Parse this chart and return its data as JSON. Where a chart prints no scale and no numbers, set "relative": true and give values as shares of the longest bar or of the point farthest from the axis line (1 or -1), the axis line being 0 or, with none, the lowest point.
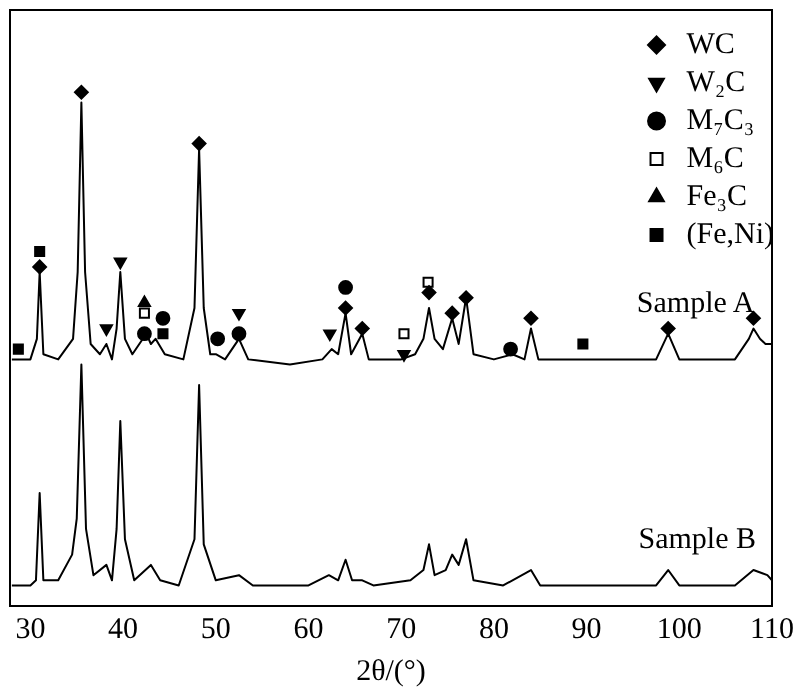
{
  "chart_data": {
    "type": "line",
    "relative": true,
    "xlabel": "2θ/(°)",
    "xlim": [
      27.8,
      110
    ],
    "xticks": [
      30,
      40,
      50,
      60,
      70,
      80,
      90,
      100,
      110
    ],
    "grid": false,
    "legend": "top right",
    "marker": "none",
    "line_style": "solid",
    "series": [
      {
        "name": "Sample A",
        "color": "#000000",
        "x": [
          28,
          30,
          30.7,
          31.0,
          31.4,
          33,
          34.6,
          35.1,
          35.5,
          35.9,
          36.5,
          37.5,
          38.2,
          38.8,
          39.3,
          39.7,
          40.2,
          41,
          42.5,
          43,
          43.5,
          44.5,
          46.5,
          47.7,
          48.2,
          48.7,
          49.4,
          50,
          51,
          52.5,
          53.5,
          58,
          61.5,
          62.5,
          63.2,
          64.0,
          64.6,
          65.8,
          66.5,
          70,
          71.5,
          72.4,
          73.0,
          73.6,
          74.5,
          75.5,
          76.2,
          77.0,
          77.8,
          80,
          82,
          83.3,
          84.0,
          84.8,
          89,
          97.5,
          98.8,
          100,
          106,
          107.5,
          108,
          108.7,
          109.3,
          110
        ],
        "values": [
          0.48,
          0.48,
          0.52,
          0.65,
          0.49,
          0.48,
          0.52,
          0.65,
          0.98,
          0.65,
          0.51,
          0.49,
          0.51,
          0.48,
          0.54,
          0.65,
          0.52,
          0.49,
          0.53,
          0.51,
          0.52,
          0.49,
          0.48,
          0.58,
          0.89,
          0.58,
          0.49,
          0.49,
          0.48,
          0.52,
          0.48,
          0.47,
          0.48,
          0.5,
          0.49,
          0.57,
          0.49,
          0.53,
          0.48,
          0.48,
          0.49,
          0.52,
          0.58,
          0.52,
          0.5,
          0.56,
          0.51,
          0.6,
          0.49,
          0.48,
          0.49,
          0.48,
          0.54,
          0.48,
          0.48,
          0.48,
          0.53,
          0.48,
          0.48,
          0.52,
          0.54,
          0.52,
          0.51,
          0.51
        ]
      },
      {
        "name": "Sample B",
        "color": "#000000",
        "x": [
          28,
          30,
          30.6,
          31.0,
          31.4,
          33,
          34.5,
          35.0,
          35.5,
          36,
          36.8,
          38.2,
          38.8,
          39.3,
          39.7,
          40.2,
          41.2,
          43,
          44,
          46,
          47.7,
          48.2,
          48.7,
          50,
          52.5,
          54,
          60,
          62.2,
          63.2,
          64,
          64.7,
          65.8,
          67,
          71,
          72.4,
          73,
          73.6,
          74.8,
          75.5,
          76.2,
          77,
          77.8,
          81,
          84,
          85,
          97.5,
          98.8,
          100,
          106,
          108,
          109.5,
          110
        ],
        "values": [
          0.04,
          0.04,
          0.05,
          0.22,
          0.05,
          0.05,
          0.1,
          0.17,
          0.47,
          0.15,
          0.06,
          0.08,
          0.05,
          0.15,
          0.36,
          0.13,
          0.05,
          0.08,
          0.05,
          0.04,
          0.13,
          0.43,
          0.12,
          0.05,
          0.06,
          0.04,
          0.04,
          0.06,
          0.05,
          0.09,
          0.05,
          0.05,
          0.04,
          0.05,
          0.07,
          0.12,
          0.06,
          0.07,
          0.1,
          0.08,
          0.13,
          0.05,
          0.04,
          0.07,
          0.04,
          0.04,
          0.07,
          0.04,
          0.04,
          0.07,
          0.06,
          0.05
        ]
      },
      {
        "name": "WC",
        "type": "scatter",
        "marker": "diamond",
        "color": "#000000",
        "x": [
          31.0,
          35.5,
          48.2,
          64.0,
          65.8,
          73.0,
          75.5,
          77,
          84,
          98.8,
          108
        ],
        "values": [
          0.66,
          1,
          0.9,
          0.58,
          0.54,
          0.61,
          0.57,
          0.6,
          0.56,
          0.54,
          0.56
        ]
      },
      {
        "name": "W₂C",
        "type": "scatter",
        "marker": "triangle-down",
        "color": "#000000",
        "x": [
          38.2,
          39.7,
          52.5,
          62.3,
          70.3
        ],
        "values": [
          0.54,
          0.67,
          0.57,
          0.53,
          0.49
        ]
      },
      {
        "name": "M₇C₃",
        "type": "scatter",
        "marker": "circle",
        "color": "#000000",
        "x": [
          42.3,
          44.3,
          50.2,
          52.5,
          64.0,
          81.8
        ],
        "values": [
          0.53,
          0.56,
          0.52,
          0.53,
          0.62,
          0.5
        ]
      },
      {
        "name": "M₆C",
        "type": "scatter",
        "marker": "square-open",
        "color": "#000000",
        "x": [
          42.3,
          70.3,
          72.9
        ],
        "values": [
          0.57,
          0.53,
          0.63
        ]
      },
      {
        "name": "Fe₃C",
        "type": "scatter",
        "marker": "triangle",
        "color": "#000000",
        "x": [
          42.3
        ],
        "values": [
          0.59
        ]
      },
      {
        "name": "(Fe,Ni)",
        "type": "scatter",
        "marker": "square",
        "color": "#000000",
        "x": [
          28.7,
          31.0,
          44.3,
          89.6
        ],
        "values": [
          0.5,
          0.69,
          0.53,
          0.51
        ]
      }
    ]
  }
}
